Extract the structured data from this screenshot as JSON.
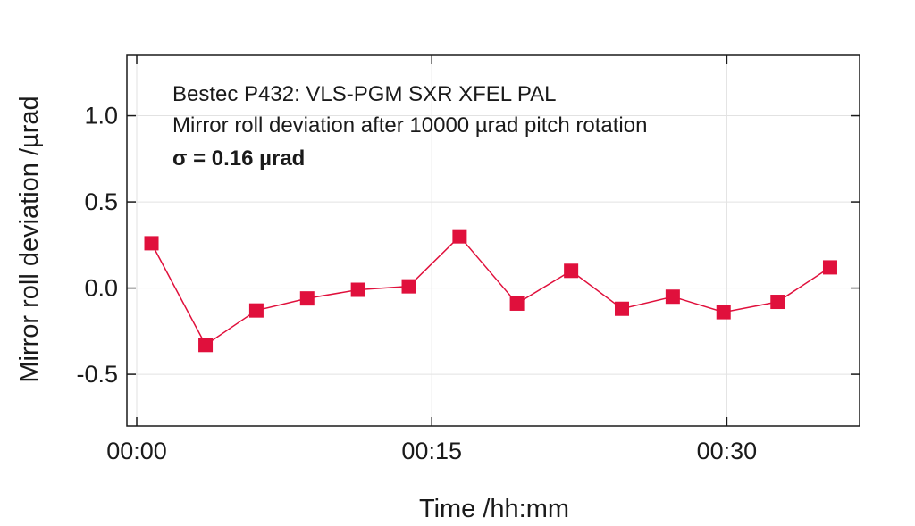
{
  "chart_data": {
    "type": "line",
    "title": "",
    "xlabel": "Time /hh:mm",
    "ylabel": "Mirror roll deviation /µrad",
    "xlim": [
      "-00:00:30",
      "00:36:45"
    ],
    "ylim": [
      -0.8,
      1.35
    ],
    "x_ticks": [
      {
        "value": "00:00",
        "label": "00:00"
      },
      {
        "value": "00:15",
        "label": "00:15"
      },
      {
        "value": "00:30",
        "label": "00:30"
      }
    ],
    "y_ticks": [
      {
        "value": 1.0,
        "label": "1.0"
      },
      {
        "value": 0.5,
        "label": "0.5"
      },
      {
        "value": 0.0,
        "label": "0.0"
      },
      {
        "value": -0.5,
        "label": "-0.5"
      }
    ],
    "grid": true,
    "annotations": [
      {
        "text": "Bestec P432: VLS-PGM SXR XFEL PAL",
        "bold": false
      },
      {
        "text": "Mirror roll deviation after 10000 µrad pitch rotation",
        "bold": false
      },
      {
        "text": "σ = 0.16 µrad",
        "bold": true
      }
    ],
    "series": [
      {
        "color": "#e0103c",
        "marker": "square",
        "x": [
          "00:00:45",
          "00:03:30",
          "00:06:05",
          "00:08:40",
          "00:11:15",
          "00:13:50",
          "00:16:25",
          "00:19:20",
          "00:22:05",
          "00:24:40",
          "00:27:15",
          "00:29:50",
          "00:32:35",
          "00:35:15"
        ],
        "values": [
          0.26,
          -0.33,
          -0.13,
          -0.06,
          -0.01,
          0.01,
          0.3,
          -0.09,
          0.1,
          -0.12,
          -0.05,
          -0.14,
          -0.08,
          0.12
        ]
      }
    ]
  }
}
